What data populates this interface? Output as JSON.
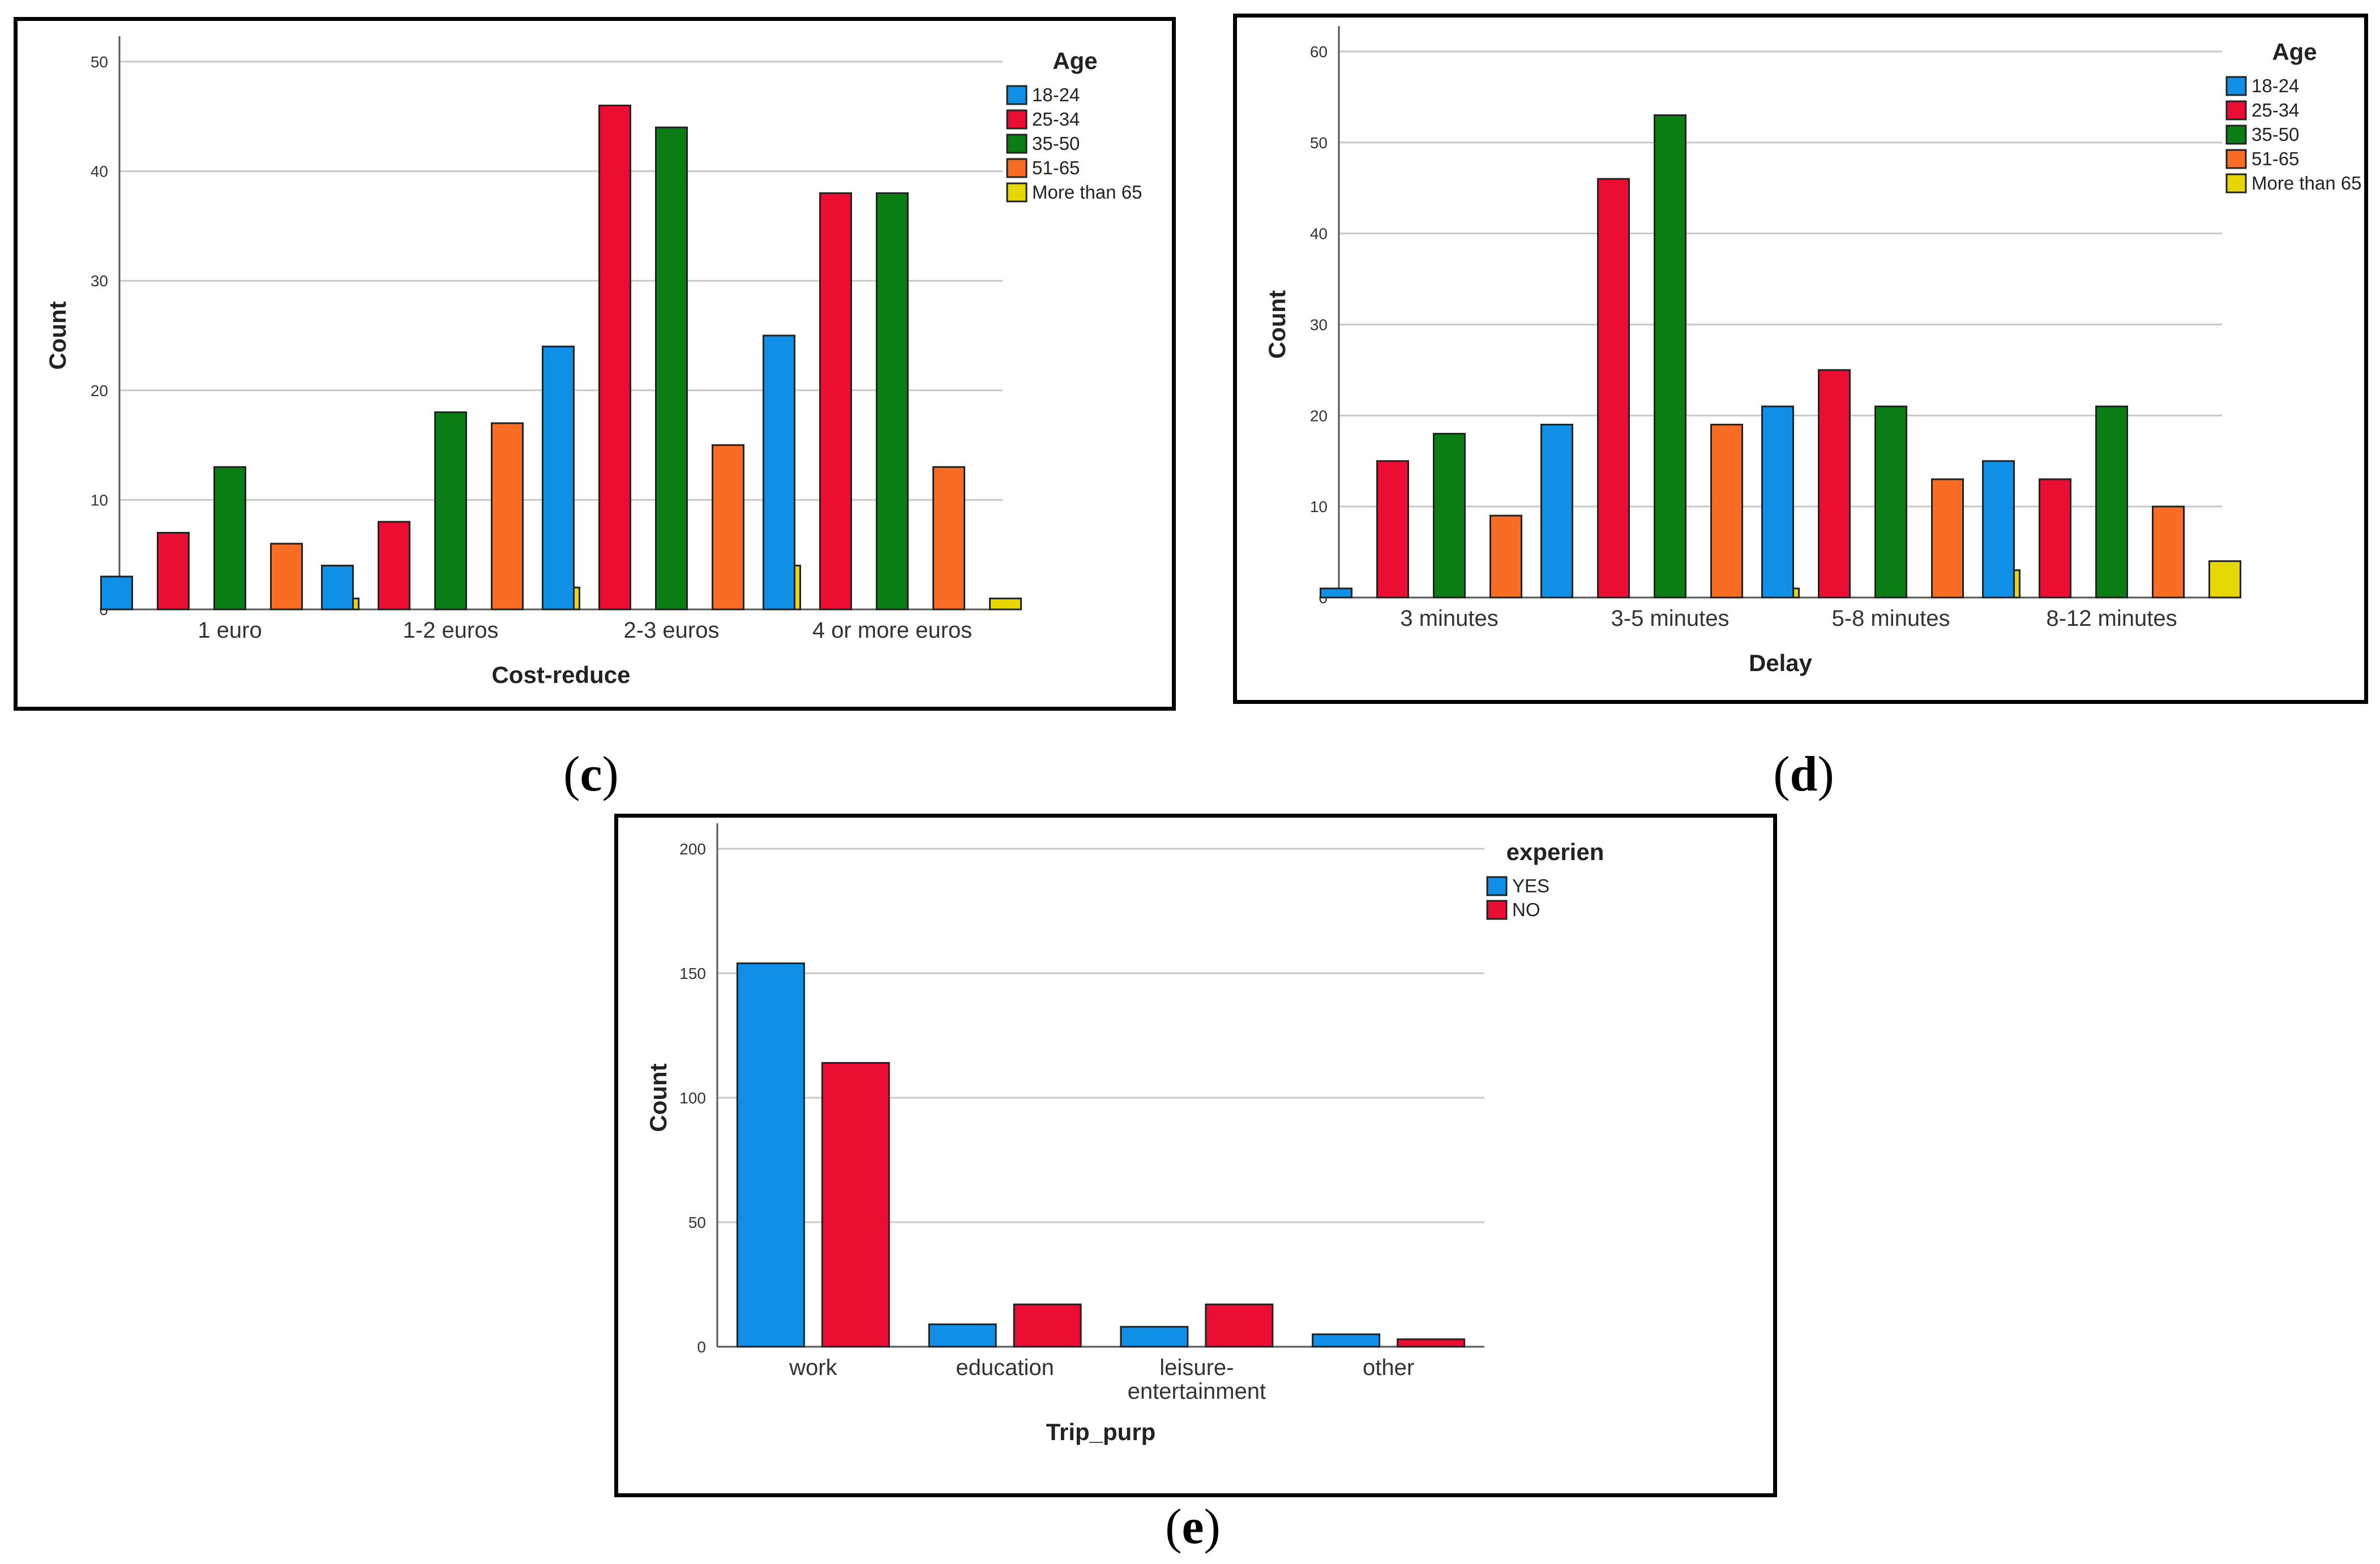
{
  "panels": {
    "c": {
      "label_open": "(",
      "label_letter": "c",
      "label_close": ")"
    },
    "d": {
      "label_open": "(",
      "label_letter": "d",
      "label_close": ")"
    },
    "e": {
      "label_open": "(",
      "label_letter": "e",
      "label_close": ")"
    }
  },
  "colors": {
    "18-24": "#0f8fe5",
    "25-34": "#ec0d33",
    "35-50": "#0a7e14",
    "51-65": "#f86c24",
    "More than 65": "#e6d700",
    "YES": "#0f8fe5",
    "NO": "#ec0d33"
  },
  "chart_data": [
    {
      "id": "c",
      "type": "bar",
      "xlabel": "Cost-reduce",
      "ylabel": "Count",
      "ylim": [
        0,
        50
      ],
      "yticks": [
        0,
        10,
        20,
        30,
        40,
        50
      ],
      "grid": true,
      "legend_title": "Age",
      "legend_position": "top-right",
      "categories": [
        "1 euro",
        "1-2 euros",
        "2-3 euros",
        "4 or more euros"
      ],
      "series": [
        {
          "name": "18-24",
          "values": [
            3,
            4,
            24,
            25
          ]
        },
        {
          "name": "25-34",
          "values": [
            7,
            8,
            46,
            38
          ]
        },
        {
          "name": "35-50",
          "values": [
            13,
            18,
            44,
            38
          ]
        },
        {
          "name": "51-65",
          "values": [
            6,
            17,
            15,
            13
          ]
        },
        {
          "name": "More than 65",
          "values": [
            1,
            2,
            4,
            1
          ]
        }
      ]
    },
    {
      "id": "d",
      "type": "bar",
      "xlabel": "Delay",
      "ylabel": "Count",
      "ylim": [
        0,
        60
      ],
      "yticks": [
        0,
        10,
        20,
        30,
        40,
        50,
        60
      ],
      "grid": true,
      "legend_title": "Age",
      "legend_position": "top-right",
      "categories": [
        "3 minutes",
        "3-5 minutes",
        "5-8 minutes",
        "8-12 minutes"
      ],
      "series": [
        {
          "name": "18-24",
          "values": [
            1,
            19,
            21,
            15
          ]
        },
        {
          "name": "25-34",
          "values": [
            15,
            46,
            25,
            13
          ]
        },
        {
          "name": "35-50",
          "values": [
            18,
            53,
            21,
            21
          ]
        },
        {
          "name": "51-65",
          "values": [
            9,
            19,
            13,
            10
          ]
        },
        {
          "name": "More than 65",
          "values": [
            0,
            1,
            3,
            4
          ]
        }
      ]
    },
    {
      "id": "e",
      "type": "bar",
      "xlabel": "Trip_purp",
      "ylabel": "Count",
      "ylim": [
        0,
        200
      ],
      "yticks": [
        0,
        50,
        100,
        150,
        200
      ],
      "grid": true,
      "legend_title": "experien",
      "legend_position": "top-right",
      "categories": [
        "work",
        "education",
        "leisure-\nentertainment",
        "other"
      ],
      "series": [
        {
          "name": "YES",
          "values": [
            154,
            9,
            8,
            5
          ]
        },
        {
          "name": "NO",
          "values": [
            114,
            17,
            17,
            3
          ]
        }
      ]
    }
  ]
}
